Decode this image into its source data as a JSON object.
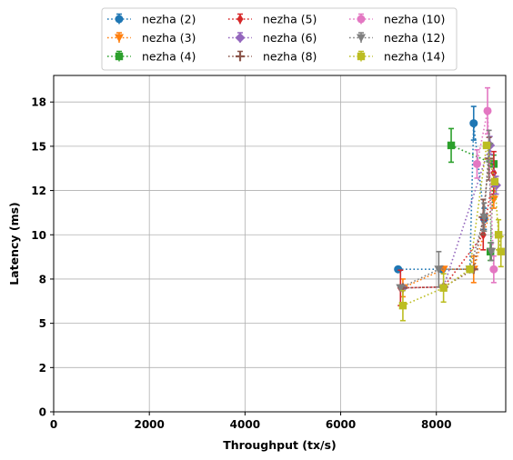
{
  "chart_data": {
    "type": "scatter",
    "xlabel": "Throughput (tx/s)",
    "ylabel": "Latency (ms)",
    "xlim": [
      0,
      9450
    ],
    "ylim": [
      0,
      19
    ],
    "xticks": [
      0,
      2000,
      4000,
      6000,
      8000
    ],
    "yticks": [
      0,
      2.5,
      5,
      7.5,
      10,
      12.5,
      15,
      17.5
    ],
    "ytick_labels": [
      "0",
      "2",
      "5",
      "8",
      "10",
      "12",
      "15",
      "18"
    ],
    "grid": true,
    "legend_position": "top-center",
    "series": [
      {
        "name": "nezha (2)",
        "color": "#1f77b4",
        "marker": "circle",
        "points": [
          {
            "x": 7200,
            "y": 8.05,
            "err": 0
          },
          {
            "x": 8120,
            "y": 8.05,
            "err": 0
          },
          {
            "x": 8700,
            "y": 8.05,
            "err": 0
          },
          {
            "x": 8780,
            "y": 16.3,
            "err": 0.95
          },
          {
            "x": 9000,
            "y": 10.9,
            "err": 0.6
          }
        ]
      },
      {
        "name": "nezha (3)",
        "color": "#ff7f0e",
        "marker": "triangle-down",
        "points": [
          {
            "x": 7300,
            "y": 7.0,
            "err": 0.5
          },
          {
            "x": 8150,
            "y": 8.05,
            "err": 0
          },
          {
            "x": 8780,
            "y": 8.05,
            "err": 0.75
          },
          {
            "x": 9200,
            "y": 12.0,
            "err": 0.5
          }
        ]
      },
      {
        "name": "nezha (4)",
        "color": "#2ca02c",
        "marker": "square",
        "points": [
          {
            "x": 8310,
            "y": 15.05,
            "err": 0.95
          },
          {
            "x": 9200,
            "y": 14.0,
            "err": 0.5
          },
          {
            "x": 9130,
            "y": 9.05,
            "err": 0.5
          }
        ]
      },
      {
        "name": "nezha (5)",
        "color": "#d62728",
        "marker": "diamond-thin",
        "points": [
          {
            "x": 7250,
            "y": 7.0,
            "err": 1.0
          },
          {
            "x": 8150,
            "y": 7.05,
            "err": 0
          },
          {
            "x": 8980,
            "y": 10.0,
            "err": 0.85
          },
          {
            "x": 9200,
            "y": 13.5,
            "err": 1.2
          }
        ]
      },
      {
        "name": "nezha (6)",
        "color": "#9467bd",
        "marker": "diamond",
        "points": [
          {
            "x": 7300,
            "y": 7.0,
            "err": 0
          },
          {
            "x": 8150,
            "y": 7.05,
            "err": 0
          },
          {
            "x": 9120,
            "y": 15.05,
            "err": 0.5
          },
          {
            "x": 9250,
            "y": 12.8,
            "err": 0.5
          }
        ]
      },
      {
        "name": "nezha (8)",
        "color": "#8c564b",
        "marker": "cross",
        "points": [
          {
            "x": 7300,
            "y": 7.0,
            "err": 0
          },
          {
            "x": 8150,
            "y": 7.05,
            "err": 0
          },
          {
            "x": 8780,
            "y": 8.05,
            "err": 0
          },
          {
            "x": 8980,
            "y": 11.0,
            "err": 1.0
          },
          {
            "x": 9100,
            "y": 14.3,
            "err": 1.2
          }
        ]
      },
      {
        "name": "nezha (10)",
        "color": "#e377c2",
        "marker": "circle",
        "points": [
          {
            "x": 8850,
            "y": 14.0,
            "err": 0.8
          },
          {
            "x": 9070,
            "y": 17.0,
            "err": 1.3
          },
          {
            "x": 9200,
            "y": 8.05,
            "err": 0.75
          }
        ]
      },
      {
        "name": "nezha (12)",
        "color": "#7f7f7f",
        "marker": "triangle-down",
        "points": [
          {
            "x": 7250,
            "y": 7.0,
            "err": 0
          },
          {
            "x": 8050,
            "y": 8.05,
            "err": 1.0
          },
          {
            "x": 8700,
            "y": 8.05,
            "err": 0
          },
          {
            "x": 9000,
            "y": 11.0,
            "err": 0.8
          },
          {
            "x": 9100,
            "y": 15.0,
            "err": 0.9
          },
          {
            "x": 9150,
            "y": 9.05,
            "err": 0.5
          }
        ]
      },
      {
        "name": "nezha (14)",
        "color": "#bcbd22",
        "marker": "square",
        "points": [
          {
            "x": 7300,
            "y": 6.0,
            "err": 0.85
          },
          {
            "x": 8150,
            "y": 7.0,
            "err": 0.8
          },
          {
            "x": 8700,
            "y": 8.05,
            "err": 0
          },
          {
            "x": 9050,
            "y": 15.05,
            "err": 0
          },
          {
            "x": 9220,
            "y": 13.0,
            "err": 0
          },
          {
            "x": 9300,
            "y": 10.0,
            "err": 0.85
          },
          {
            "x": 9350,
            "y": 9.05,
            "err": 0.85
          }
        ]
      }
    ]
  }
}
